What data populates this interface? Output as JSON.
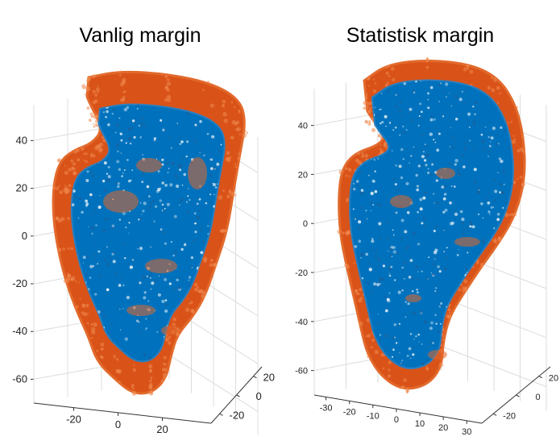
{
  "chart_data": [
    {
      "type": "scatter",
      "projection": "3d",
      "title": "Vanlig margin",
      "grid": true,
      "yticks": [
        "40",
        "20",
        "0",
        "-20",
        "-40",
        "-60"
      ],
      "xticks": [
        "-20",
        "0",
        "20"
      ],
      "zticks": [
        "20",
        "0",
        "-20"
      ],
      "ylim": [
        -70,
        55
      ],
      "series": [
        {
          "role": "margin",
          "color": "#d95319"
        },
        {
          "role": "target",
          "color": "#0072bd"
        }
      ]
    },
    {
      "type": "scatter",
      "projection": "3d",
      "title": "Statistisk margin",
      "grid": true,
      "yticks": [
        "40",
        "20",
        "0",
        "-20",
        "-40",
        "-60"
      ],
      "xticks": [
        "-30",
        "-20",
        "-10",
        "0",
        "10",
        "20",
        "30"
      ],
      "zticks": [
        "20",
        "0",
        "-20"
      ],
      "ylim": [
        -70,
        55
      ],
      "series": [
        {
          "role": "margin",
          "color": "#d95319"
        },
        {
          "role": "target",
          "color": "#0072bd"
        }
      ]
    }
  ]
}
